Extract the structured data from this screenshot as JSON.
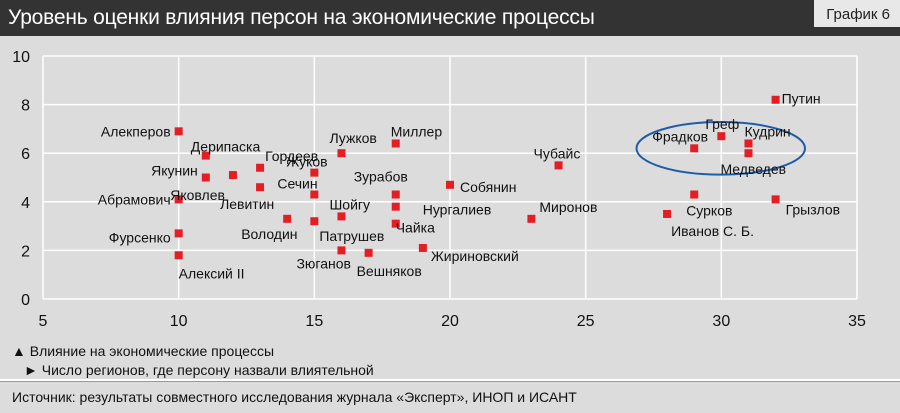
{
  "title": "Уровень оценки влияния персон на экономические процессы",
  "graph_tag": "График 6",
  "legend": {
    "y_axis_label": "▲ Влияние на экономические процессы",
    "x_axis_label": "► Число регионов, где персону назвали влиятельной"
  },
  "source": "Источник: результаты совместного исследования журнала «Эксперт», ИНОП и ИСАНТ",
  "colors": {
    "marker": "#e31e24",
    "ellipse": "#1f5ca8",
    "grid": "#ffffff",
    "background": "#dcdcdc"
  },
  "chart_data": {
    "type": "scatter",
    "xlim": [
      5,
      35
    ],
    "ylim": [
      0,
      10
    ],
    "x_ticks": [
      5,
      10,
      15,
      20,
      25,
      30,
      35
    ],
    "y_ticks": [
      0,
      2,
      4,
      6,
      8,
      10
    ],
    "grid": true,
    "points": [
      {
        "label": "Алекперов",
        "x": 10,
        "y": 6.9
      },
      {
        "label": "Дерипаска",
        "x": 11,
        "y": 5.9
      },
      {
        "label": "Якунин",
        "x": 11,
        "y": 5.0
      },
      {
        "label": "Яковлев",
        "x": 12,
        "y": 5.1
      },
      {
        "label": "Абрамович",
        "x": 10,
        "y": 4.1
      },
      {
        "label": "Фурсенко",
        "x": 10,
        "y": 2.7
      },
      {
        "label": "Алексий II",
        "x": 10,
        "y": 1.8
      },
      {
        "label": "Гордеев",
        "x": 13,
        "y": 5.4
      },
      {
        "label": "Левитин",
        "x": 13,
        "y": 4.6
      },
      {
        "label": "Жуков",
        "x": 15,
        "y": 5.2
      },
      {
        "label": "Сечин",
        "x": 15,
        "y": 4.3
      },
      {
        "label": "Володин",
        "x": 14,
        "y": 3.3
      },
      {
        "label": "Патрушев",
        "x": 15,
        "y": 3.2
      },
      {
        "label": "Лужков",
        "x": 16,
        "y": 6.0
      },
      {
        "label": "Шойгу",
        "x": 16,
        "y": 3.4
      },
      {
        "label": "Зюганов",
        "x": 16,
        "y": 2.0
      },
      {
        "label": "Вешняков",
        "x": 17,
        "y": 1.9
      },
      {
        "label": "Миллер",
        "x": 18,
        "y": 6.4
      },
      {
        "label": "Зурабов",
        "x": 18,
        "y": 4.3
      },
      {
        "label": "Нургалиев",
        "x": 18,
        "y": 3.8
      },
      {
        "label": "Чайка",
        "x": 18,
        "y": 3.1
      },
      {
        "label": "Жириновский",
        "x": 19,
        "y": 2.1
      },
      {
        "label": "Собянин",
        "x": 20,
        "y": 4.7
      },
      {
        "label": "Миронов",
        "x": 23,
        "y": 3.3
      },
      {
        "label": "Чубайс",
        "x": 24,
        "y": 5.5
      },
      {
        "label": "Путин",
        "x": 32,
        "y": 8.2
      },
      {
        "label": "Греф",
        "x": 30,
        "y": 6.7
      },
      {
        "label": "Фрадков",
        "x": 29,
        "y": 6.2
      },
      {
        "label": "Кудрин",
        "x": 31,
        "y": 6.4
      },
      {
        "label": "Медведев",
        "x": 31,
        "y": 6.0
      },
      {
        "label": "Сурков",
        "x": 29,
        "y": 4.3
      },
      {
        "label": "Иванов С. Б.",
        "x": 28,
        "y": 3.5
      },
      {
        "label": "Грызлов",
        "x": 32,
        "y": 4.1
      }
    ]
  }
}
